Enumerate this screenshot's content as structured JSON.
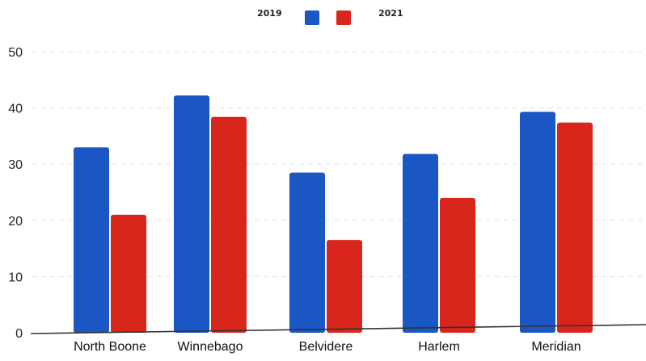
{
  "chart_data": {
    "type": "bar",
    "title": "",
    "xlabel": "",
    "ylabel": "",
    "categories": [
      "North Boone",
      "Winnebago",
      "Belvidere",
      "Harlem",
      "Meridian"
    ],
    "series": [
      {
        "name": "2019",
        "color": "#1a56c4",
        "values": [
          33,
          42.2,
          28.5,
          31.8,
          39.3
        ]
      },
      {
        "name": "2021",
        "color": "#d9261c",
        "values": [
          21,
          38.4,
          16.5,
          24,
          37.4
        ]
      }
    ],
    "ylim": [
      0,
      50
    ],
    "yticks": [
      "0",
      "10",
      "20",
      "30",
      "40",
      "50"
    ],
    "grid": true,
    "legend_position": "top-center"
  }
}
